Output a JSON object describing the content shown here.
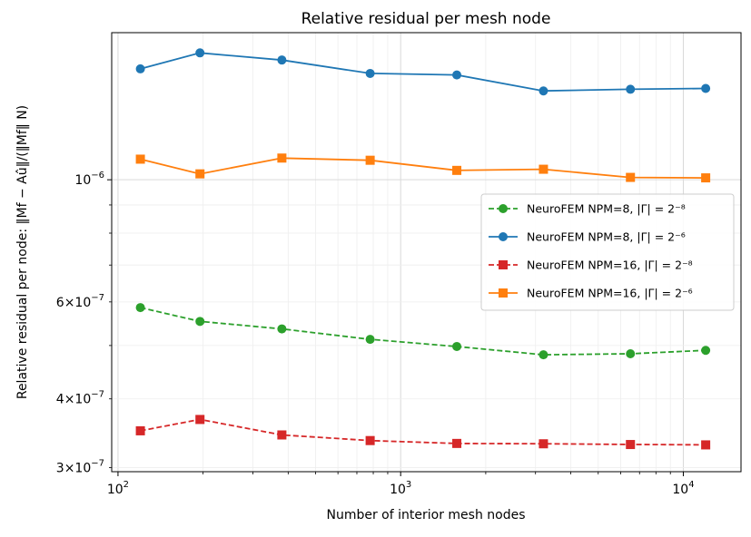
{
  "chart_data": {
    "type": "line",
    "title": "Relative residual per mesh node",
    "xlabel": "Number of interior mesh nodes",
    "ylabel": "Relative residual per node: ‖Mf − Aû‖/(‖Mf‖ N)",
    "xscale": "log",
    "yscale": "log",
    "xlim": [
      95,
      16000
    ],
    "ylim": [
      2.95e-07,
      1.85e-06
    ],
    "grid": "both",
    "legend_position": "center-right",
    "x_ticks": [
      {
        "value": 100,
        "base": "10",
        "exp": "2"
      },
      {
        "value": 1000,
        "base": "10",
        "exp": "3"
      },
      {
        "value": 10000,
        "base": "10",
        "exp": "4"
      }
    ],
    "y_ticks": [
      {
        "value": 3e-07,
        "mant": "3",
        "base": "×10",
        "exp": "−7"
      },
      {
        "value": 4e-07,
        "mant": "4",
        "base": "×10",
        "exp": "−7"
      },
      {
        "value": 6e-07,
        "mant": "6",
        "base": "×10",
        "exp": "−7"
      },
      {
        "value": 1e-06,
        "mant": "",
        "base": "10",
        "exp": "−6"
      }
    ],
    "x": [
      120,
      195,
      380,
      780,
      1580,
      3200,
      6500,
      12000
    ],
    "series": [
      {
        "name": "NeuroFEM  NPM=8,  |Γ| = 2⁻⁸",
        "color": "#2ca02c",
        "marker": "circle",
        "linestyle": "dashed",
        "values": [
          5.86e-07,
          5.53e-07,
          5.36e-07,
          5.13e-07,
          4.98e-07,
          4.81e-07,
          4.83e-07,
          4.9e-07
        ]
      },
      {
        "name": "NeuroFEM  NPM=8,  |Γ| = 2⁻⁶",
        "color": "#1f77b4",
        "marker": "circle",
        "linestyle": "solid",
        "values": [
          1.59e-06,
          1.7e-06,
          1.65e-06,
          1.56e-06,
          1.55e-06,
          1.45e-06,
          1.46e-06,
          1.465e-06
        ]
      },
      {
        "name": "NeuroFEM  NPM=16, |Γ| = 2⁻⁸",
        "color": "#d62728",
        "marker": "square",
        "linestyle": "dashed",
        "values": [
          3.5e-07,
          3.67e-07,
          3.44e-07,
          3.36e-07,
          3.32e-07,
          3.315e-07,
          3.305e-07,
          3.3e-07
        ]
      },
      {
        "name": "NeuroFEM  NPM=16, |Γ| = 2⁻⁶",
        "color": "#ff7f0e",
        "marker": "square",
        "linestyle": "solid",
        "values": [
          1.09e-06,
          1.025e-06,
          1.095e-06,
          1.085e-06,
          1.04e-06,
          1.045e-06,
          1.01e-06,
          1.008e-06
        ]
      }
    ]
  }
}
